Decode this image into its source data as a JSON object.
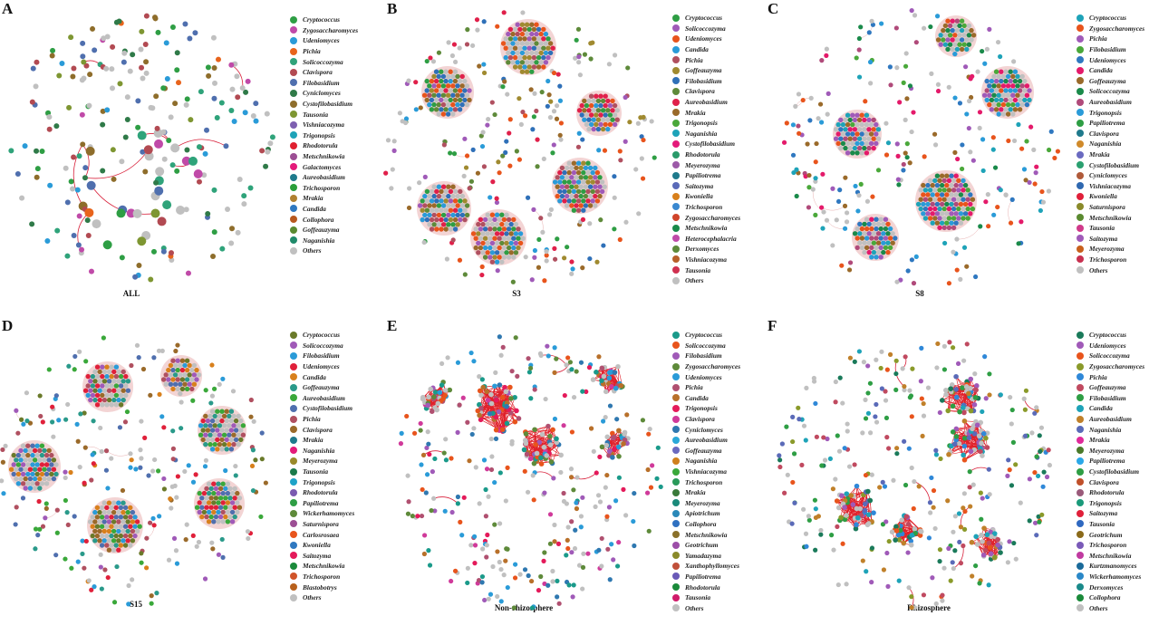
{
  "panels": [
    {
      "letter": "A",
      "caption": "ALL",
      "legend": [
        [
          "Cryptococcus",
          "#2e9e44"
        ],
        [
          "Zygosaccharomyces",
          "#c04aa8"
        ],
        [
          "Udeniomyces",
          "#2a9bd8"
        ],
        [
          "Pichia",
          "#e8641c"
        ],
        [
          "Solicoccozyma",
          "#2fa37a"
        ],
        [
          "Clavispora",
          "#b24a52"
        ],
        [
          "Filobasidium",
          "#4f6fae"
        ],
        [
          "Cyniclomyces",
          "#2f7a48"
        ],
        [
          "Cystofilobasidium",
          "#8e6d2b"
        ],
        [
          "Tausonia",
          "#7e9632"
        ],
        [
          "Vishniacozyma",
          "#7d5fb0"
        ],
        [
          "Trigonopsis",
          "#1ea3b8"
        ],
        [
          "Rhodotorula",
          "#e02030"
        ],
        [
          "Metschnikowia",
          "#9c4e94"
        ],
        [
          "Galactomyces",
          "#e41a7a"
        ],
        [
          "Aureobasidium",
          "#1f7a8c"
        ],
        [
          "Trichosporon",
          "#2a9e3a"
        ],
        [
          "Mrakia",
          "#b08030"
        ],
        [
          "Candida",
          "#2f78c0"
        ],
        [
          "Collophora",
          "#b8581e"
        ],
        [
          "Goffeauzyma",
          "#5a8a30"
        ],
        [
          "Naganishia",
          "#208a6a"
        ],
        [
          "Others",
          "#c0c0c0"
        ]
      ]
    },
    {
      "letter": "B",
      "caption": "S3",
      "legend": [
        [
          "Cryptococcus",
          "#2e9e44"
        ],
        [
          "Solicoccozyma",
          "#a05ab8"
        ],
        [
          "Udeniomyces",
          "#e8541c"
        ],
        [
          "Candida",
          "#2a9bd8"
        ],
        [
          "Pichia",
          "#b05060"
        ],
        [
          "Goffeauzyma",
          "#a08a30"
        ],
        [
          "Filobasidium",
          "#2f70b8"
        ],
        [
          "Clavispora",
          "#5e8a3a"
        ],
        [
          "Aureobasidium",
          "#e0204a"
        ],
        [
          "Mrakia",
          "#9a6a2a"
        ],
        [
          "Trigonopsis",
          "#4aa83a"
        ],
        [
          "Naganishia",
          "#1ea3b8"
        ],
        [
          "Cystofilobasidium",
          "#e41a7a"
        ],
        [
          "Rhodotorula",
          "#2a9a6a"
        ],
        [
          "Meyerozyma",
          "#9c5aa8"
        ],
        [
          "Papiliotrema",
          "#1f7a8c"
        ],
        [
          "Saitozyma",
          "#5a6ab8"
        ],
        [
          "Kwoniella",
          "#d8801c"
        ],
        [
          "Trichosporon",
          "#3a88d0"
        ],
        [
          "Zygosaccharomyces",
          "#d0442a"
        ],
        [
          "Metschnikowia",
          "#1a8a4a"
        ],
        [
          "Heterocephalacria",
          "#c04aa8"
        ],
        [
          "Derxomyces",
          "#5e8a3a"
        ],
        [
          "Vishniacozyma",
          "#b8602a"
        ],
        [
          "Tausonia",
          "#d03050"
        ],
        [
          "Others",
          "#c0c0c0"
        ]
      ]
    },
    {
      "letter": "C",
      "caption": "S8",
      "legend": [
        [
          "Cryptococcus",
          "#1ea3b8"
        ],
        [
          "Zygosaccharomyces",
          "#e8541c"
        ],
        [
          "Pichia",
          "#a05ab8"
        ],
        [
          "Filobasidium",
          "#4aa83a"
        ],
        [
          "Udeniomyces",
          "#2f78c0"
        ],
        [
          "Candida",
          "#e41a6a"
        ],
        [
          "Goffeauzyma",
          "#9a6a2a"
        ],
        [
          "Solicoccozyma",
          "#1a8a4a"
        ],
        [
          "Aureobasidium",
          "#b04a7a"
        ],
        [
          "Trigonopsis",
          "#2a9bd8"
        ],
        [
          "Papiliotrema",
          "#2e9e44"
        ],
        [
          "Clavispora",
          "#1f7a8c"
        ],
        [
          "Naganishia",
          "#d08a2a"
        ],
        [
          "Mrakia",
          "#6a6ac0"
        ],
        [
          "Cystofilobasidium",
          "#2aa070"
        ],
        [
          "Cyniclomyces",
          "#b05a3a"
        ],
        [
          "Vishniacozyma",
          "#2f68b0"
        ],
        [
          "Kwoniella",
          "#e0203a"
        ],
        [
          "Saturnispora",
          "#8a8a2a"
        ],
        [
          "Metschnikowia",
          "#5a8a30"
        ],
        [
          "Tausonia",
          "#d03a8a"
        ],
        [
          "Saitozyma",
          "#a05ab8"
        ],
        [
          "Meyerozyma",
          "#c8601c"
        ],
        [
          "Trichosporon",
          "#c83050"
        ],
        [
          "Others",
          "#c0c0c0"
        ]
      ]
    },
    {
      "letter": "D",
      "caption": "S15",
      "legend": [
        [
          "Cryptococcus",
          "#6a7a2a"
        ],
        [
          "Solicoccozyma",
          "#a05ab8"
        ],
        [
          "Filobasidium",
          "#2a9bd8"
        ],
        [
          "Udeniomyces",
          "#e0203a"
        ],
        [
          "Candida",
          "#d8801c"
        ],
        [
          "Goffeauzyma",
          "#2a9a8a"
        ],
        [
          "Aureobasidium",
          "#3aa83a"
        ],
        [
          "Cystofilobasidium",
          "#4f6fae"
        ],
        [
          "Pichia",
          "#b05060"
        ],
        [
          "Clavispora",
          "#9a6a2a"
        ],
        [
          "Mrakia",
          "#1f7a8c"
        ],
        [
          "Naganishia",
          "#e41a7a"
        ],
        [
          "Meyerozyma",
          "#9a8a2a"
        ],
        [
          "Tausonia",
          "#1a7a4a"
        ],
        [
          "Trigonopsis",
          "#1ea3c8"
        ],
        [
          "Rhodotorula",
          "#7a5ab0"
        ],
        [
          "Papiliotrema",
          "#2e9e44"
        ],
        [
          "Wickerhamomyces",
          "#5e8a3a"
        ],
        [
          "Saturnispora",
          "#9c4e94"
        ],
        [
          "Carlosrosaea",
          "#e8541c"
        ],
        [
          "Kwoniella",
          "#2f78c0"
        ],
        [
          "Saitozyma",
          "#e41a5a"
        ],
        [
          "Metschnikowia",
          "#1a8a3a"
        ],
        [
          "Trichosporon",
          "#d0542a"
        ],
        [
          "Blastobotrys",
          "#b8601c"
        ],
        [
          "Others",
          "#c0c0c0"
        ]
      ]
    },
    {
      "letter": "E",
      "caption": "Non-rhizosphere",
      "legend": [
        [
          "Cryptococcus",
          "#1a9a8a"
        ],
        [
          "Solicoccozyma",
          "#e8541c"
        ],
        [
          "Filobasidium",
          "#a05ab8"
        ],
        [
          "Zygosaccharomyces",
          "#5e8a3a"
        ],
        [
          "Udeniomyces",
          "#2a9bd8"
        ],
        [
          "Pichia",
          "#b05070"
        ],
        [
          "Candida",
          "#b8702a"
        ],
        [
          "Trigonopsis",
          "#e41a5a"
        ],
        [
          "Clavispora",
          "#d03a9a"
        ],
        [
          "Cyniclomyces",
          "#2f78b0"
        ],
        [
          "Aureobasidium",
          "#2aa8d8"
        ],
        [
          "Goffeauzyma",
          "#6a6ac0"
        ],
        [
          "Naganishia",
          "#d0801c"
        ],
        [
          "Vishniacozyma",
          "#3aa83a"
        ],
        [
          "Trichosporon",
          "#2a9a5a"
        ],
        [
          "Mrakia",
          "#3a7a3a"
        ],
        [
          "Meyerozyma",
          "#1a8a7a"
        ],
        [
          "Apiotrichum",
          "#2a88b8"
        ],
        [
          "Collophora",
          "#2f70c0"
        ],
        [
          "Metschnikowia",
          "#8a702a"
        ],
        [
          "Geotrichum",
          "#9c4ea8"
        ],
        [
          "Yamadazyma",
          "#8a8a2a"
        ],
        [
          "Xanthophyllomyces",
          "#c0503a"
        ],
        [
          "Papiliotrema",
          "#6a5ab8"
        ],
        [
          "Rhodotorula",
          "#1a8a3a"
        ],
        [
          "Tausonia",
          "#d01a6a"
        ],
        [
          "Others",
          "#c0c0c0"
        ]
      ]
    },
    {
      "letter": "F",
      "caption": "Rhizosphere",
      "legend": [
        [
          "Cryptococcus",
          "#1a7a5a"
        ],
        [
          "Udeniomyces",
          "#a05ab8"
        ],
        [
          "Solicoccozyma",
          "#e8541c"
        ],
        [
          "Zygosaccharomyces",
          "#8a9a2a"
        ],
        [
          "Pichia",
          "#2f88d8"
        ],
        [
          "Goffeauzyma",
          "#c04a60"
        ],
        [
          "Filobasidium",
          "#2e9e44"
        ],
        [
          "Candida",
          "#1ea3b8"
        ],
        [
          "Aureobasidium",
          "#c0802a"
        ],
        [
          "Naganishia",
          "#5a6ab8"
        ],
        [
          "Mrakia",
          "#e02a9a"
        ],
        [
          "Meyerozyma",
          "#4a7a2a"
        ],
        [
          "Papiliotrema",
          "#2aa8e8"
        ],
        [
          "Cystofilobasidium",
          "#2e9e44"
        ],
        [
          "Clavispora",
          "#c0502a"
        ],
        [
          "Rhodotorula",
          "#9a5a7a"
        ],
        [
          "Trigonopsis",
          "#1a9a7a"
        ],
        [
          "Saitozyma",
          "#e0203a"
        ],
        [
          "Tausonia",
          "#2f68c0"
        ],
        [
          "Geotrichum",
          "#8a6a1a"
        ],
        [
          "Trichosporon",
          "#7a5ab8"
        ],
        [
          "Metschnikowia",
          "#c03aa0"
        ],
        [
          "Kurtzmanomyces",
          "#1a6a9a"
        ],
        [
          "Wickerhamomyces",
          "#2a88c8"
        ],
        [
          "Derxomyces",
          "#1a8a8a"
        ],
        [
          "Collophora",
          "#1a8a3a"
        ],
        [
          "Others",
          "#c0c0c0"
        ]
      ]
    }
  ]
}
